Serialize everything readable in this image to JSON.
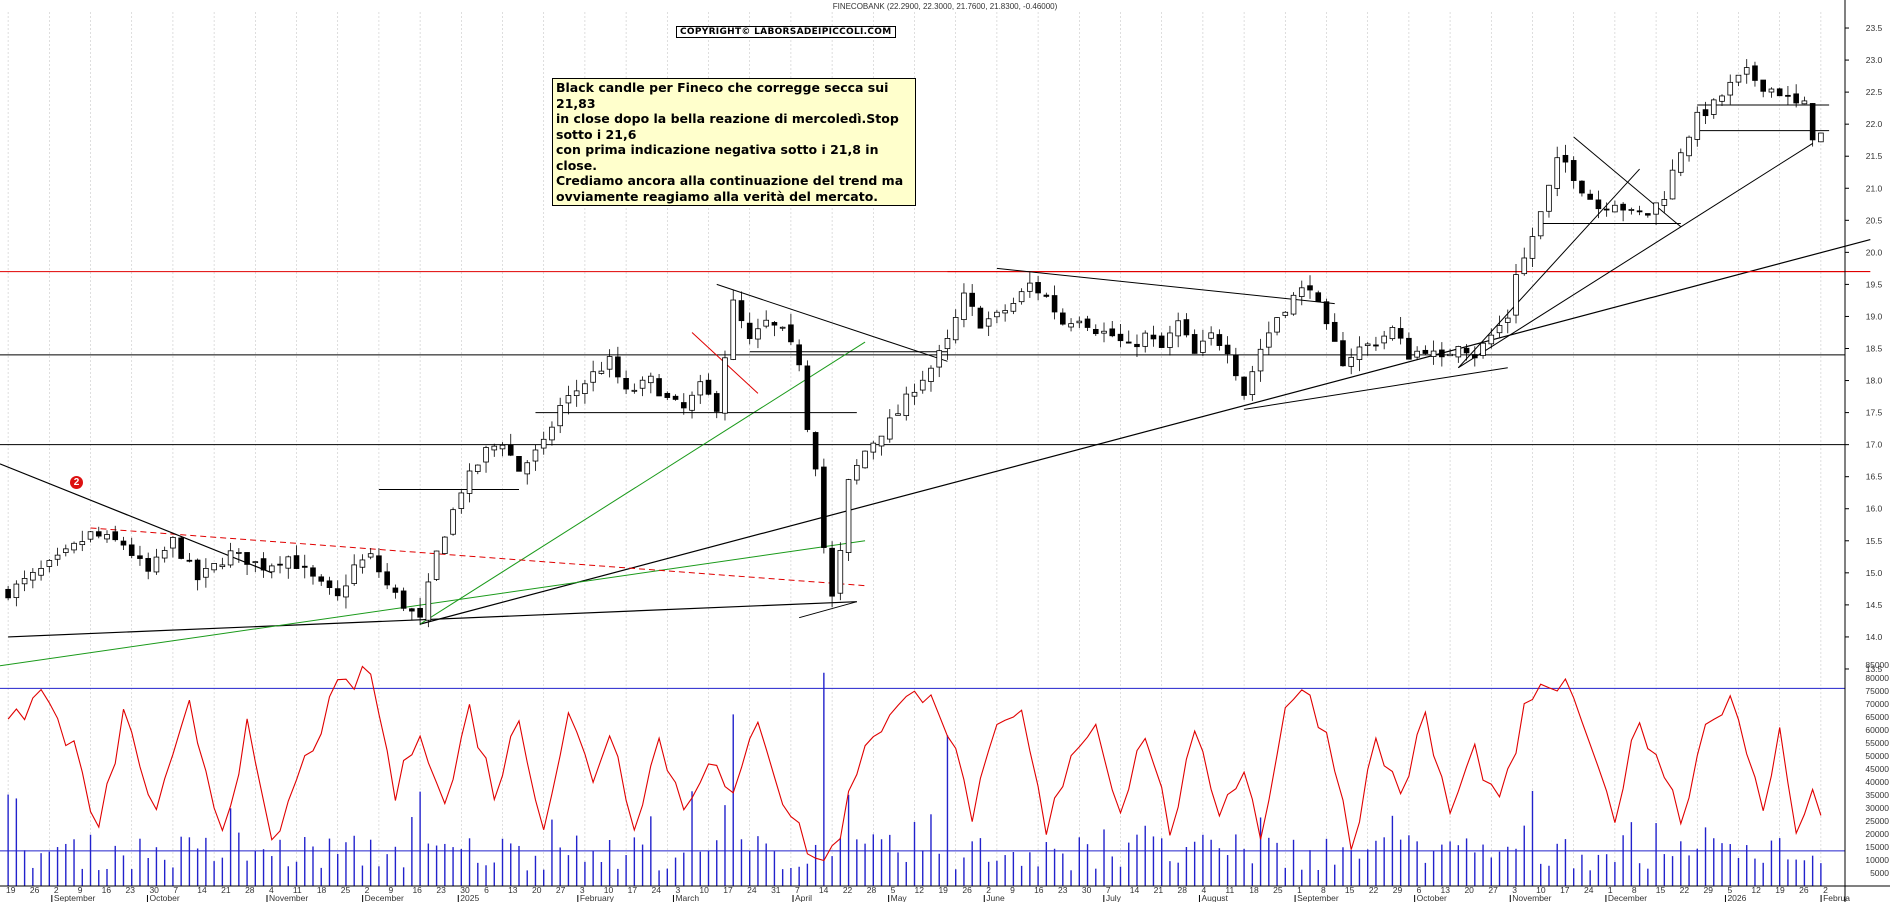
{
  "header": {
    "quote": "FINECOBANK (22.2900, 22.3000, 21.7600, 21.8300, -0.46000)"
  },
  "copyright": "COPYRIGHT© LABORSADEIPICCOLI.COM",
  "annotation": {
    "text": "Black candle per Fineco che corregge secca sui 21,83\nin close dopo la bella reazione di mercoledì.Stop sotto i 21,6\ncon prima indicazione negativa sotto i 21,8 in close.\nCrediamo ancora alla continuazione del trend ma\novviamente reagiamo alla verità del mercato.",
    "marker": "2"
  },
  "colors": {
    "candle": "#000000",
    "oscillator": "#e00000",
    "volume": "#2222cc",
    "grid": "#c8c8c8",
    "resistance": "#e00000",
    "green_trend": "#1a9a1a",
    "note_bg": "#ffffcc"
  },
  "chart_data": [
    {
      "type": "candlestick",
      "title": "FINECOBANK",
      "ylim": [
        13.25,
        23.75
      ],
      "yticks": [
        13.5,
        14.0,
        14.5,
        15.0,
        15.5,
        16.0,
        16.5,
        17.0,
        17.5,
        18.0,
        18.5,
        19.0,
        19.5,
        20.0,
        20.5,
        21.0,
        21.5,
        22.0,
        22.5,
        23.0,
        23.5
      ],
      "x_day_labels": [
        "19",
        "26",
        "2",
        "9",
        "16",
        "23",
        "30",
        "7",
        "14",
        "21",
        "28",
        "4",
        "11",
        "18",
        "25",
        "2",
        "9",
        "16",
        "23",
        "30",
        "6",
        "13",
        "20",
        "27",
        "3",
        "10",
        "17",
        "24",
        "3",
        "10",
        "17",
        "24",
        "31",
        "7",
        "14",
        "22",
        "28",
        "5",
        "12",
        "19",
        "26",
        "2",
        "9",
        "16",
        "23",
        "30",
        "7",
        "14",
        "21",
        "28",
        "4",
        "11",
        "18",
        "25",
        "1",
        "8",
        "15",
        "22",
        "29",
        "6",
        "13",
        "20",
        "27",
        "3",
        "10",
        "17",
        "24",
        "1",
        "8",
        "15",
        "22",
        "29",
        "5",
        "12",
        "19",
        "26",
        "2"
      ],
      "x_month_labels": [
        "September",
        "October",
        "November",
        "December",
        "2025",
        "February",
        "March",
        "April",
        "May",
        "June",
        "July",
        "August",
        "September",
        "October",
        "November",
        "December",
        "2026",
        "Februa"
      ],
      "last_ohlc": {
        "open": 22.29,
        "high": 22.3,
        "low": 21.76,
        "close": 21.83,
        "change": -0.46
      },
      "close_anchors": [
        [
          0,
          14.7
        ],
        [
          6,
          15.2
        ],
        [
          10,
          15.6
        ],
        [
          14,
          15.45
        ],
        [
          17,
          15.0
        ],
        [
          20,
          15.5
        ],
        [
          23,
          14.9
        ],
        [
          27,
          15.3
        ],
        [
          31,
          15.1
        ],
        [
          34,
          15.25
        ],
        [
          37,
          14.9
        ],
        [
          40,
          14.6
        ],
        [
          42,
          15.1
        ],
        [
          44,
          15.25
        ],
        [
          46,
          14.8
        ],
        [
          48,
          14.5
        ],
        [
          50,
          14.25
        ],
        [
          52,
          15.3
        ],
        [
          55,
          16.3
        ],
        [
          58,
          16.9
        ],
        [
          60,
          17.05
        ],
        [
          62,
          16.6
        ],
        [
          65,
          17.0
        ],
        [
          67,
          17.6
        ],
        [
          69,
          17.85
        ],
        [
          71,
          18.1
        ],
        [
          73,
          18.3
        ],
        [
          75,
          17.8
        ],
        [
          78,
          18.0
        ],
        [
          80,
          17.7
        ],
        [
          82,
          17.55
        ],
        [
          84,
          17.9
        ],
        [
          86,
          17.6
        ],
        [
          88,
          19.2
        ],
        [
          90,
          18.6
        ],
        [
          92,
          18.9
        ],
        [
          94,
          18.75
        ],
        [
          96,
          18.3
        ],
        [
          97,
          17.3
        ],
        [
          98,
          16.7
        ],
        [
          99,
          15.4
        ],
        [
          100,
          14.6
        ],
        [
          101,
          15.3
        ],
        [
          102,
          16.4
        ],
        [
          104,
          16.9
        ],
        [
          106,
          17.2
        ],
        [
          108,
          17.5
        ],
        [
          110,
          17.9
        ],
        [
          112,
          18.2
        ],
        [
          114,
          18.6
        ],
        [
          116,
          19.3
        ],
        [
          118,
          18.9
        ],
        [
          120,
          19.0
        ],
        [
          122,
          19.2
        ],
        [
          124,
          19.5
        ],
        [
          126,
          19.3
        ],
        [
          128,
          18.9
        ],
        [
          130,
          19.0
        ],
        [
          132,
          18.8
        ],
        [
          134,
          18.7
        ],
        [
          136,
          18.5
        ],
        [
          138,
          18.7
        ],
        [
          140,
          18.5
        ],
        [
          142,
          18.9
        ],
        [
          144,
          18.4
        ],
        [
          146,
          18.7
        ],
        [
          148,
          18.5
        ],
        [
          150,
          17.8
        ],
        [
          152,
          18.5
        ],
        [
          154,
          19.0
        ],
        [
          156,
          19.3
        ],
        [
          158,
          19.5
        ],
        [
          160,
          18.8
        ],
        [
          162,
          18.3
        ],
        [
          164,
          18.5
        ],
        [
          166,
          18.6
        ],
        [
          168,
          18.8
        ],
        [
          170,
          18.4
        ],
        [
          172,
          18.5
        ],
        [
          174,
          18.3
        ],
        [
          176,
          18.6
        ],
        [
          178,
          18.4
        ],
        [
          180,
          18.7
        ],
        [
          182,
          19.0
        ],
        [
          183,
          19.7
        ],
        [
          184,
          19.9
        ],
        [
          186,
          20.6
        ],
        [
          188,
          21.4
        ],
        [
          189,
          21.4
        ],
        [
          191,
          21.0
        ],
        [
          193,
          20.7
        ],
        [
          195,
          20.8
        ],
        [
          197,
          20.6
        ],
        [
          199,
          20.6
        ],
        [
          201,
          20.9
        ],
        [
          203,
          21.6
        ],
        [
          205,
          22.1
        ],
        [
          207,
          22.3
        ],
        [
          209,
          22.6
        ],
        [
          211,
          22.8
        ],
        [
          213,
          22.6
        ],
        [
          215,
          22.5
        ],
        [
          217,
          22.3
        ],
        [
          218,
          22.29
        ],
        [
          219,
          21.83
        ]
      ],
      "trendlines": [
        {
          "name": "support-long",
          "p1": [
            50,
            14.2
          ],
          "p2": [
            226,
            20.2
          ]
        },
        {
          "name": "resistance-red",
          "p1": [
            114,
            19.7
          ],
          "p2": [
            226,
            19.7
          ]
        },
        {
          "name": "base-black",
          "p1": [
            0,
            14.0
          ],
          "p2": [
            103,
            14.55
          ]
        }
      ],
      "horizontal_levels": [
        17.0,
        18.4,
        19.7
      ]
    },
    {
      "type": "line+bar",
      "title": "",
      "ylim": [
        0,
        85000
      ],
      "yticks": [
        5000,
        10000,
        15000,
        20000,
        25000,
        30000,
        35000,
        40000,
        45000,
        50000,
        55000,
        60000,
        65000,
        70000,
        75000,
        80000,
        85000
      ],
      "horizontal_levels": [
        13500,
        76000
      ],
      "oscillator_anchors": [
        [
          0,
          60000
        ],
        [
          4,
          75000
        ],
        [
          8,
          52000
        ],
        [
          11,
          20000
        ],
        [
          14,
          66000
        ],
        [
          18,
          27000
        ],
        [
          22,
          68000
        ],
        [
          26,
          22000
        ],
        [
          29,
          60000
        ],
        [
          32,
          14000
        ],
        [
          35,
          40000
        ],
        [
          38,
          62000
        ],
        [
          40,
          75000
        ],
        [
          44,
          82000
        ],
        [
          47,
          35000
        ],
        [
          50,
          62000
        ],
        [
          53,
          30000
        ],
        [
          56,
          68000
        ],
        [
          59,
          36000
        ],
        [
          62,
          64000
        ],
        [
          65,
          24000
        ],
        [
          68,
          65000
        ],
        [
          71,
          42000
        ],
        [
          73,
          60000
        ],
        [
          76,
          25000
        ],
        [
          79,
          56000
        ],
        [
          82,
          30000
        ],
        [
          85,
          50000
        ],
        [
          88,
          32000
        ],
        [
          91,
          66000
        ],
        [
          94,
          34000
        ],
        [
          97,
          15000
        ],
        [
          99,
          8000
        ],
        [
          101,
          22000
        ],
        [
          104,
          56000
        ],
        [
          108,
          68000
        ],
        [
          112,
          77000
        ],
        [
          114,
          60000
        ],
        [
          117,
          28000
        ],
        [
          120,
          58000
        ],
        [
          123,
          66000
        ],
        [
          126,
          20000
        ],
        [
          129,
          52000
        ],
        [
          132,
          62000
        ],
        [
          135,
          30000
        ],
        [
          138,
          60000
        ],
        [
          141,
          22000
        ],
        [
          144,
          56000
        ],
        [
          147,
          30000
        ],
        [
          150,
          46000
        ],
        [
          152,
          18000
        ],
        [
          155,
          70000
        ],
        [
          158,
          74000
        ],
        [
          161,
          48000
        ],
        [
          163,
          16000
        ],
        [
          166,
          55000
        ],
        [
          169,
          36000
        ],
        [
          172,
          64000
        ],
        [
          175,
          28000
        ],
        [
          178,
          52000
        ],
        [
          181,
          30000
        ],
        [
          184,
          66000
        ],
        [
          187,
          78000
        ],
        [
          190,
          74000
        ],
        [
          192,
          50000
        ],
        [
          195,
          28000
        ],
        [
          198,
          64000
        ],
        [
          201,
          44000
        ],
        [
          203,
          26000
        ],
        [
          206,
          62000
        ],
        [
          209,
          74000
        ],
        [
          211,
          48000
        ],
        [
          213,
          30000
        ],
        [
          215,
          58000
        ],
        [
          217,
          24000
        ],
        [
          219,
          36000
        ],
        [
          220,
          26000
        ]
      ]
    }
  ]
}
